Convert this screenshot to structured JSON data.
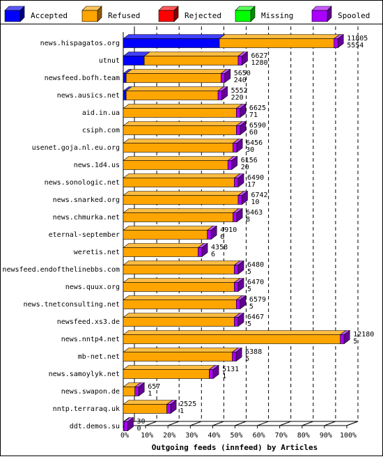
{
  "chart_data": {
    "type": "bar",
    "orientation": "horizontal",
    "stacked": true,
    "style": "3d",
    "xlabel": "Outgoing feeds (innfeed) by Articles",
    "x_ticks": [
      "0%",
      "10%",
      "20%",
      "30%",
      "40%",
      "50%",
      "60%",
      "70%",
      "80%",
      "90%",
      "100%"
    ],
    "xlim": [
      0,
      100
    ],
    "legend": [
      {
        "name": "Accepted",
        "color": "#0000ff"
      },
      {
        "name": "Refused",
        "color": "#ffa500"
      },
      {
        "name": "Rejected",
        "color": "#ff0000"
      },
      {
        "name": "Missing",
        "color": "#00ff00"
      },
      {
        "name": "Spooled",
        "color": "#aa00ff"
      }
    ],
    "legend_placement": "top",
    "rows": [
      {
        "label": "news.hispagatos.org",
        "total": "11805",
        "accepted": "5554",
        "accepted_pct": 43.0,
        "refused_pct": 94.3
      },
      {
        "label": "utnut",
        "total": "6627",
        "accepted": "1280",
        "accepted_pct": 9.4,
        "refused_pct": 51.4
      },
      {
        "label": "newsfeed.bofh.team",
        "total": "5650",
        "accepted": "240",
        "accepted_pct": 1.3,
        "refused_pct": 43.7
      },
      {
        "label": "news.ausics.net",
        "total": "5552",
        "accepted": "220",
        "accepted_pct": 1.3,
        "refused_pct": 42.4
      },
      {
        "label": "aid.in.ua",
        "total": "6625",
        "accepted": "71",
        "accepted_pct": 0,
        "refused_pct": 50.6
      },
      {
        "label": "csiph.com",
        "total": "6590",
        "accepted": "60",
        "accepted_pct": 0,
        "refused_pct": 50.6
      },
      {
        "label": "usenet.goja.nl.eu.org",
        "total": "6456",
        "accepted": "30",
        "accepted_pct": 0,
        "refused_pct": 49.1
      },
      {
        "label": "news.1d4.us",
        "total": "6156",
        "accepted": "20",
        "accepted_pct": 0,
        "refused_pct": 46.8
      },
      {
        "label": "news.sonologic.net",
        "total": "6490",
        "accepted": "17",
        "accepted_pct": 0,
        "refused_pct": 49.7
      },
      {
        "label": "news.snarked.org",
        "total": "6742",
        "accepted": "10",
        "accepted_pct": 0,
        "refused_pct": 51.4
      },
      {
        "label": "news.chmurka.net",
        "total": "6463",
        "accepted": "8",
        "accepted_pct": 0,
        "refused_pct": 49.1
      },
      {
        "label": "eternal-september",
        "total": "4910",
        "accepted": "6",
        "accepted_pct": 0,
        "refused_pct": 37.6
      },
      {
        "label": "weretis.net",
        "total": "4358",
        "accepted": "6",
        "accepted_pct": 0,
        "refused_pct": 33.5
      },
      {
        "label": "newsfeed.endofthelinebbs.com",
        "total": "6480",
        "accepted": "5",
        "accepted_pct": 0,
        "refused_pct": 49.7
      },
      {
        "label": "news.quux.org",
        "total": "6470",
        "accepted": "5",
        "accepted_pct": 0,
        "refused_pct": 49.7
      },
      {
        "label": "news.tnetconsulting.net",
        "total": "6579",
        "accepted": "5",
        "accepted_pct": 0,
        "refused_pct": 50.6
      },
      {
        "label": "newsfeed.xs3.de",
        "total": "6467",
        "accepted": "5",
        "accepted_pct": 0,
        "refused_pct": 49.7
      },
      {
        "label": "news.nntp4.net",
        "total": "12180",
        "accepted": "5",
        "accepted_pct": 0,
        "refused_pct": 97.1
      },
      {
        "label": "mb-net.net",
        "total": "6388",
        "accepted": "5",
        "accepted_pct": 0,
        "refused_pct": 48.8
      },
      {
        "label": "news.samoylyk.net",
        "total": "5131",
        "accepted": "1",
        "accepted_pct": 0,
        "refused_pct": 38.5
      },
      {
        "label": "news.swapon.de",
        "total": "657",
        "accepted": "1",
        "accepted_pct": 0,
        "refused_pct": 5.2
      },
      {
        "label": "nntp.terraraq.uk",
        "total": "2525",
        "accepted": "1",
        "accepted_pct": 0,
        "refused_pct": 19.5
      },
      {
        "label": "ddt.demos.su",
        "total": "30",
        "accepted": "0",
        "accepted_pct": 0,
        "refused_pct": 0.3
      }
    ]
  }
}
